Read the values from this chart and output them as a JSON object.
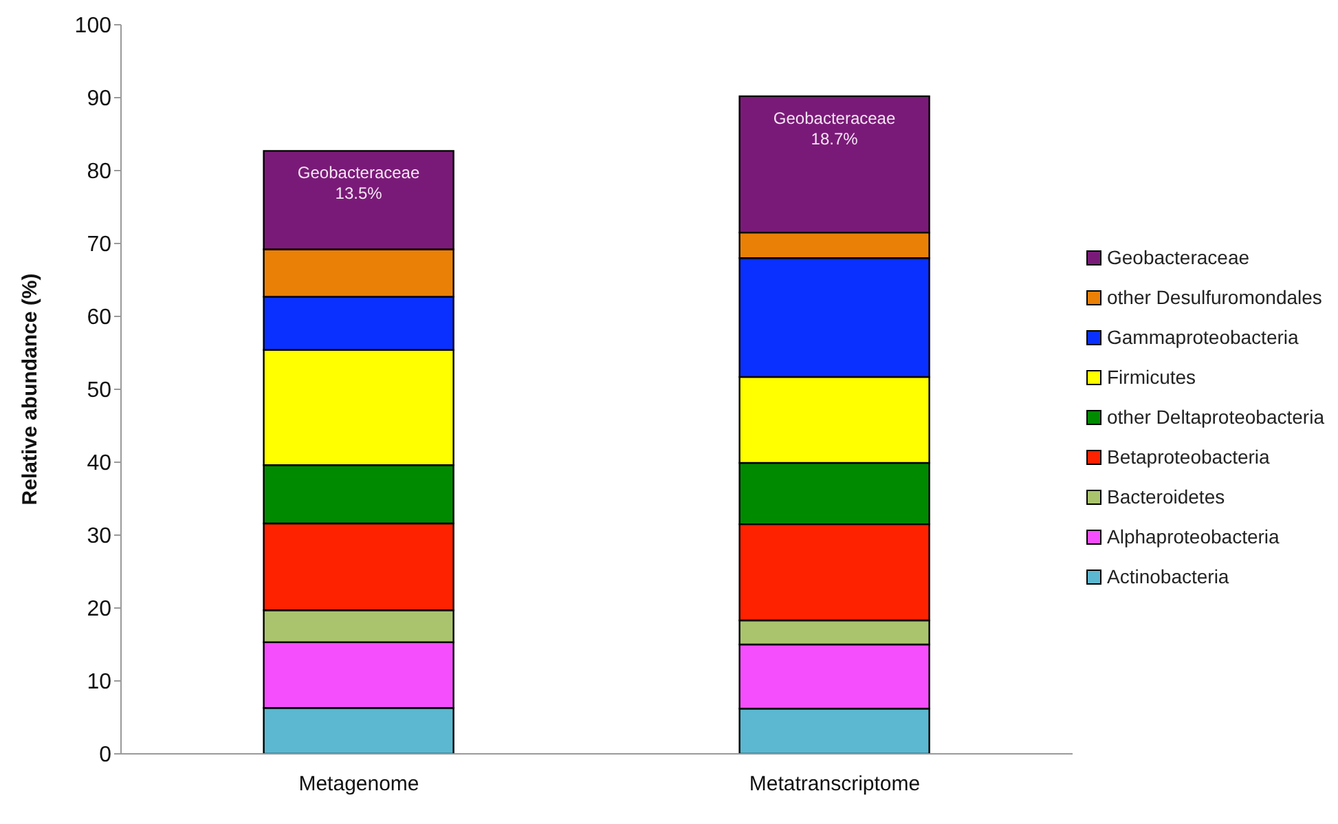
{
  "chart_data": {
    "type": "bar",
    "stacked": true,
    "ylabel": "Relative abundance (%)",
    "categories": [
      "Metagenome",
      "Metatranscriptome"
    ],
    "ylim": [
      0,
      100
    ],
    "yticks": [
      0,
      10,
      20,
      30,
      40,
      50,
      60,
      70,
      80,
      90,
      100
    ],
    "legend": "right",
    "series": [
      {
        "name": "Actinobacteria",
        "color": "#5bb8d0",
        "values": [
          6.3,
          6.2
        ]
      },
      {
        "name": "Alphaproteobacteria",
        "color": "#f54efc",
        "values": [
          9.0,
          8.8
        ]
      },
      {
        "name": "Bacteroidetes",
        "color": "#aac46e",
        "values": [
          4.4,
          3.3
        ]
      },
      {
        "name": "Betaproteobacteria",
        "color": "#ff2200",
        "values": [
          11.9,
          13.2
        ]
      },
      {
        "name": "other Deltaproteobacteria",
        "color": "#008a00",
        "values": [
          8.0,
          8.4
        ]
      },
      {
        "name": "Firmicutes",
        "color": "#ffff00",
        "values": [
          15.8,
          11.8
        ]
      },
      {
        "name": "Gammaproteobacteria",
        "color": "#0a30ff",
        "values": [
          7.3,
          16.3
        ]
      },
      {
        "name": "other Desulfuromondales",
        "color": "#ea8006",
        "values": [
          6.5,
          3.5
        ]
      },
      {
        "name": "Geobacteraceae",
        "color": "#7a1a78",
        "values": [
          13.5,
          18.7
        ],
        "value_labels": [
          "13.5%",
          "18.7%"
        ]
      }
    ]
  }
}
